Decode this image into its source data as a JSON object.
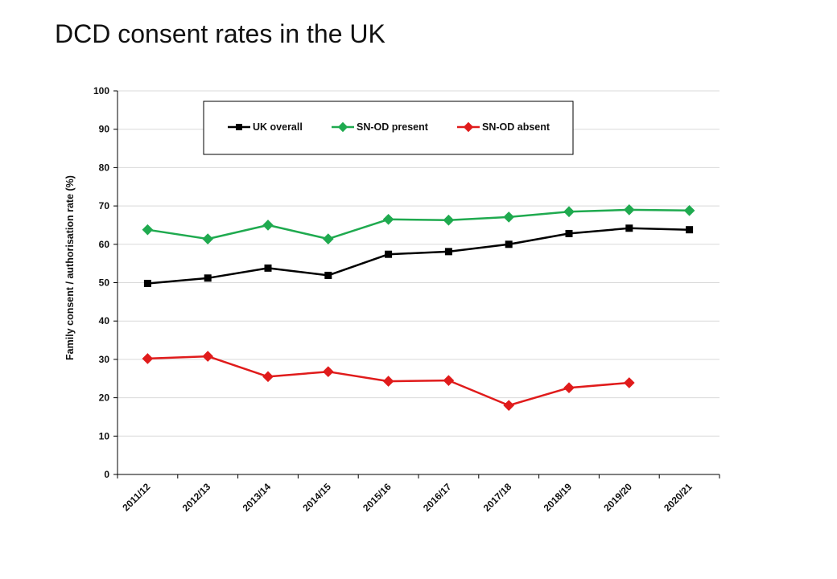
{
  "page": {
    "title": "DCD consent rates in the UK"
  },
  "chart_data": {
    "type": "line",
    "title": "",
    "xlabel": "",
    "ylabel": "Family consent / authorisation rate (%)",
    "ylim": [
      0,
      100
    ],
    "yticks": [
      0,
      10,
      20,
      30,
      40,
      50,
      60,
      70,
      80,
      90,
      100
    ],
    "grid": true,
    "legend_position": "top",
    "categories": [
      "2011/12",
      "2012/13",
      "2013/14",
      "2014/15",
      "2015/16",
      "2016/17",
      "2017/18",
      "2018/19",
      "2019/20",
      "2020/21"
    ],
    "series": [
      {
        "name": "UK overall",
        "color": "#000000",
        "marker": "square",
        "values": [
          49.8,
          51.2,
          53.8,
          51.9,
          57.4,
          58.1,
          60.0,
          62.8,
          64.2,
          63.8
        ]
      },
      {
        "name": "SN-OD present",
        "color": "#1faa4f",
        "marker": "diamond",
        "values": [
          63.8,
          61.4,
          65.0,
          61.4,
          66.5,
          66.3,
          67.1,
          68.5,
          69.0,
          68.8
        ]
      },
      {
        "name": "SN-OD absent",
        "color": "#e01b1b",
        "marker": "diamond",
        "values": [
          30.2,
          30.8,
          25.5,
          26.8,
          24.3,
          24.5,
          18.0,
          22.6,
          23.9,
          null
        ]
      }
    ]
  }
}
